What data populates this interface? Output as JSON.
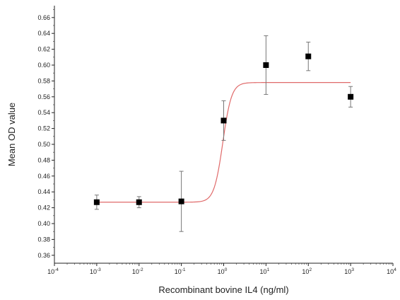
{
  "chart_data": {
    "type": "scatter",
    "title": "",
    "xlabel": "Recombinant bovine IL4 (ng/ml)",
    "ylabel": "Mean OD value",
    "x_scale": "log10",
    "xlim": [
      0.0001,
      10000
    ],
    "x_ticks": [
      {
        "base": "10",
        "exp": "-4",
        "value": 0.0001
      },
      {
        "base": "10",
        "exp": "-3",
        "value": 0.001
      },
      {
        "base": "10",
        "exp": "-2",
        "value": 0.01
      },
      {
        "base": "10",
        "exp": "-1",
        "value": 0.1
      },
      {
        "base": "10",
        "exp": "0",
        "value": 1
      },
      {
        "base": "10",
        "exp": "1",
        "value": 10
      },
      {
        "base": "10",
        "exp": "2",
        "value": 100
      },
      {
        "base": "10",
        "exp": "3",
        "value": 1000
      },
      {
        "base": "10",
        "exp": "4",
        "value": 10000
      }
    ],
    "ylim": [
      0.35,
      0.675
    ],
    "y_ticks": [
      "0.36",
      "0.38",
      "0.40",
      "0.42",
      "0.44",
      "0.46",
      "0.48",
      "0.50",
      "0.52",
      "0.54",
      "0.56",
      "0.58",
      "0.60",
      "0.62",
      "0.64",
      "0.66"
    ],
    "grid": false,
    "series": [
      {
        "marker": "square",
        "color": "#000000",
        "points": [
          {
            "x": 0.001,
            "y": 0.427,
            "err": 0.009
          },
          {
            "x": 0.01,
            "y": 0.427,
            "err": 0.007
          },
          {
            "x": 0.1,
            "y": 0.428,
            "err": 0.038
          },
          {
            "x": 1,
            "y": 0.53,
            "err": 0.025
          },
          {
            "x": 10,
            "y": 0.6,
            "err": 0.037
          },
          {
            "x": 100,
            "y": 0.611,
            "err": 0.018
          },
          {
            "x": 1000,
            "y": 0.56,
            "err": 0.013
          }
        ]
      }
    ],
    "fit_curve": {
      "color": "#e06a6a",
      "bottom": 0.427,
      "top": 0.578,
      "log_ec50": -0.02,
      "hill_slope": 4.2,
      "x_range": [
        0.001,
        1000
      ]
    }
  }
}
